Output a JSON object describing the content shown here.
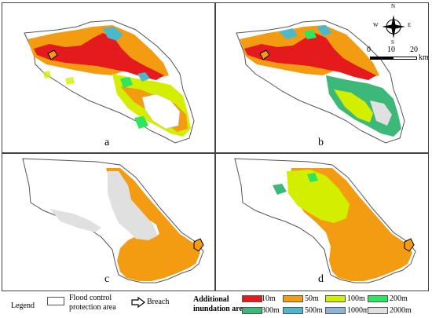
{
  "panels": [
    {
      "label": "a"
    },
    {
      "label": "b"
    },
    {
      "label": "c"
    },
    {
      "label": "d"
    }
  ],
  "compass": {
    "n": "N",
    "s": "S",
    "e": "E",
    "w": "W"
  },
  "scalebar": {
    "ticks": [
      "0",
      "10",
      "20"
    ],
    "unit": "km"
  },
  "legend": {
    "title": "Legend",
    "protection_area_label": "Flood control protection area",
    "protection_area_line1": "Flood control",
    "protection_area_line2": "protection area",
    "breach_label": "Breach",
    "additional_line1": "Additional",
    "additional_line2": "inundation area",
    "classes": [
      {
        "label": "10m",
        "color": "#e41a1c"
      },
      {
        "label": "50m",
        "color": "#f39c12"
      },
      {
        "label": "100m",
        "color": "#d4ee00"
      },
      {
        "label": "200m",
        "color": "#2ee65c"
      },
      {
        "label": "300m",
        "color": "#3cb878"
      },
      {
        "label": "500m",
        "color": "#4db8c9"
      },
      {
        "label": "1000m",
        "color": "#8fb3d9"
      },
      {
        "label": "2000m",
        "color": "#e0e0e0"
      }
    ]
  }
}
